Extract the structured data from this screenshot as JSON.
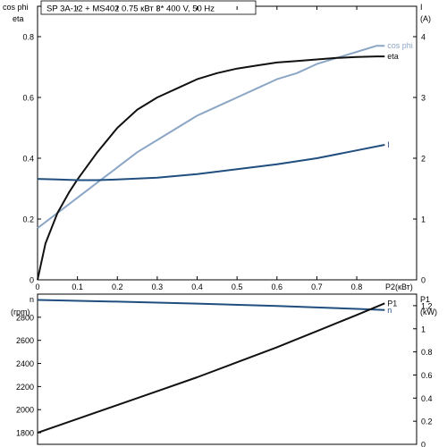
{
  "chart_data": [
    {
      "type": "line",
      "title": "SP 3A-12 + MS402    0.75 кВт   3* 400 V, 50 Hz",
      "left_axis_labels": [
        "cos phi",
        "eta"
      ],
      "right_axis_labels": [
        "I",
        "(A)"
      ],
      "xlabel": "P2(кВт)",
      "xlim": [
        0,
        0.95
      ],
      "ylim_left": [
        0,
        0.9
      ],
      "ylim_right": [
        0,
        4.5
      ],
      "x_ticks": [
        "0",
        "0.1",
        "0.2",
        "0.3",
        "0.4",
        "0.5",
        "0.6",
        "0.7",
        "0.8"
      ],
      "y_ticks_left": [
        "0",
        "0.2",
        "0.4",
        "0.6",
        "0.8"
      ],
      "y_ticks_right": [
        "0",
        "1",
        "2",
        "3",
        "4"
      ],
      "grid": false,
      "series": [
        {
          "name": "cos phi",
          "axis": "left",
          "color": "#8ca6c6",
          "x": [
            0,
            0.05,
            0.1,
            0.15,
            0.2,
            0.25,
            0.3,
            0.35,
            0.4,
            0.45,
            0.5,
            0.55,
            0.6,
            0.65,
            0.7,
            0.75,
            0.8,
            0.85,
            0.87
          ],
          "y": [
            0.17,
            0.22,
            0.27,
            0.32,
            0.37,
            0.42,
            0.46,
            0.5,
            0.54,
            0.57,
            0.6,
            0.63,
            0.66,
            0.68,
            0.71,
            0.73,
            0.75,
            0.77,
            0.77
          ]
        },
        {
          "name": "eta",
          "axis": "left",
          "color": "#111111",
          "x": [
            0,
            0.02,
            0.05,
            0.08,
            0.1,
            0.15,
            0.2,
            0.25,
            0.3,
            0.35,
            0.4,
            0.45,
            0.5,
            0.55,
            0.6,
            0.65,
            0.7,
            0.75,
            0.8,
            0.85,
            0.87
          ],
          "y": [
            0,
            0.12,
            0.22,
            0.29,
            0.33,
            0.42,
            0.5,
            0.56,
            0.6,
            0.63,
            0.66,
            0.68,
            0.695,
            0.705,
            0.715,
            0.72,
            0.725,
            0.73,
            0.733,
            0.735,
            0.735
          ]
        },
        {
          "name": "I",
          "axis": "right",
          "color": "#1f4e7f",
          "x": [
            0,
            0.05,
            0.1,
            0.15,
            0.2,
            0.3,
            0.4,
            0.5,
            0.6,
            0.7,
            0.8,
            0.87
          ],
          "y": [
            1.66,
            1.65,
            1.64,
            1.64,
            1.65,
            1.68,
            1.74,
            1.82,
            1.9,
            2.0,
            2.13,
            2.22
          ]
        }
      ]
    },
    {
      "type": "line",
      "left_axis_labels": [
        "n",
        "(rpm)"
      ],
      "right_axis_labels": [
        "P1",
        "(kW)"
      ],
      "xlim": [
        0,
        0.95
      ],
      "ylim_left": [
        1700,
        3000
      ],
      "ylim_right": [
        0,
        1.3
      ],
      "y_ticks_left": [
        "1800",
        "2000",
        "2200",
        "2400",
        "2600",
        "2800"
      ],
      "y_ticks_right": [
        "0",
        "0.2",
        "0.4",
        "0.6",
        "0.8",
        "1",
        "1.2"
      ],
      "grid": false,
      "series": [
        {
          "name": "n",
          "axis": "left",
          "color": "#1f4e7f",
          "x": [
            0,
            0.2,
            0.4,
            0.6,
            0.8,
            0.87
          ],
          "y": [
            2950,
            2935,
            2918,
            2897,
            2872,
            2862
          ]
        },
        {
          "name": "P1",
          "axis": "right",
          "color": "#111111",
          "x": [
            0,
            0.1,
            0.2,
            0.3,
            0.4,
            0.5,
            0.6,
            0.7,
            0.8,
            0.87
          ],
          "y": [
            0.1,
            0.22,
            0.34,
            0.46,
            0.58,
            0.71,
            0.84,
            0.98,
            1.12,
            1.22
          ]
        }
      ]
    }
  ]
}
